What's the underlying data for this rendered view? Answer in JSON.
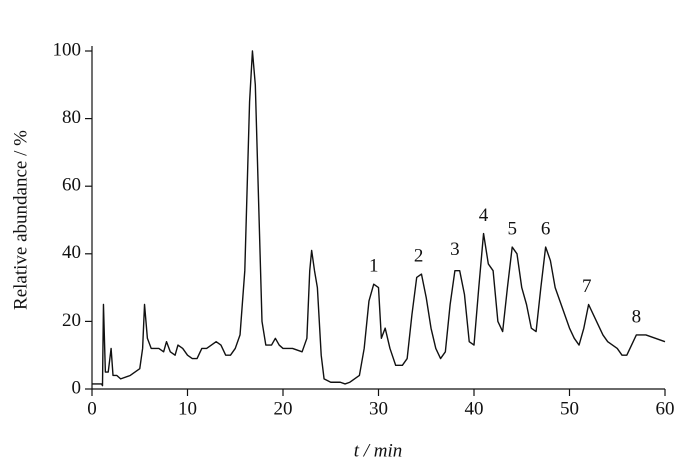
{
  "chart_data": {
    "type": "line",
    "x_label": "t / min",
    "y_label": "Relative abundance / %",
    "color": "#111111",
    "x": [
      0,
      1.0,
      1.1,
      1.2,
      1.4,
      1.7,
      2.0,
      2.2,
      2.6,
      3.0,
      4.0,
      4.5,
      5.0,
      5.3,
      5.5,
      5.8,
      6.2,
      7,
      7.5,
      7.8,
      8.2,
      8.7,
      9.0,
      9.5,
      10,
      10.5,
      11,
      11.5,
      12,
      12.5,
      13,
      13.5,
      14,
      14.5,
      15,
      15.5,
      16.0,
      16.5,
      16.8,
      17.1,
      17.5,
      17.8,
      18.2,
      18.8,
      19.2,
      19.6,
      20,
      21,
      22,
      22.5,
      22.8,
      23.0,
      23.3,
      23.6,
      24.0,
      24.3,
      25,
      26,
      26.5,
      27,
      27.5,
      28,
      28.5,
      29,
      29.5,
      30,
      30.3,
      30.7,
      31.2,
      31.8,
      32.5,
      33,
      33.5,
      34,
      34.5,
      35,
      35.5,
      36,
      36.5,
      37,
      37.5,
      38,
      38.5,
      39,
      39.5,
      40,
      40.5,
      41,
      41.5,
      42,
      42.5,
      43,
      43.5,
      44,
      44.5,
      45,
      45.5,
      46,
      46.5,
      47,
      47.5,
      48,
      48.5,
      49,
      49.5,
      50,
      50.5,
      51,
      51.5,
      52,
      52.5,
      53,
      53.5,
      54,
      55,
      55.5,
      56,
      56.5,
      57,
      57.5,
      58,
      59,
      60
    ],
    "values": [
      1.5,
      1.5,
      1,
      25,
      5,
      5,
      12,
      4,
      4,
      3,
      4,
      5,
      6,
      12,
      25,
      15,
      12,
      12,
      11,
      14,
      11,
      10,
      13,
      12,
      10,
      9,
      9,
      12,
      12,
      13,
      14,
      13,
      10,
      10,
      12,
      16,
      35,
      85,
      100,
      90,
      50,
      20,
      13,
      13,
      15,
      13,
      12,
      12,
      11,
      15,
      35,
      41,
      35,
      30,
      10,
      3,
      2,
      2,
      1.5,
      2,
      3,
      4,
      12,
      26,
      31,
      30,
      15,
      18,
      12,
      7,
      7,
      9,
      22,
      33,
      34,
      27,
      18,
      12,
      9,
      11,
      25,
      35,
      35,
      28,
      14,
      13,
      30,
      46,
      37,
      35,
      20,
      17,
      30,
      42,
      40,
      30,
      25,
      18,
      17,
      30,
      42,
      38,
      30,
      26,
      22,
      18,
      15,
      13,
      18,
      25,
      22,
      19,
      16,
      14,
      12,
      10,
      10,
      13,
      16,
      16,
      16,
      15,
      14
    ],
    "xlim": [
      0,
      60
    ],
    "ylim": [
      0,
      100
    ],
    "xticks": [
      0,
      10,
      20,
      30,
      40,
      50,
      60
    ],
    "yticks": [
      0,
      20,
      40,
      60,
      80,
      100
    ],
    "annotations": [
      {
        "text": "1",
        "x": 29.5,
        "y": 36
      },
      {
        "text": "2",
        "x": 34.2,
        "y": 39
      },
      {
        "text": "3",
        "x": 38,
        "y": 41
      },
      {
        "text": "4",
        "x": 41,
        "y": 51
      },
      {
        "text": "5",
        "x": 44,
        "y": 47
      },
      {
        "text": "6",
        "x": 47.5,
        "y": 47
      },
      {
        "text": "7",
        "x": 51.8,
        "y": 30
      },
      {
        "text": "8",
        "x": 57,
        "y": 21
      }
    ]
  }
}
